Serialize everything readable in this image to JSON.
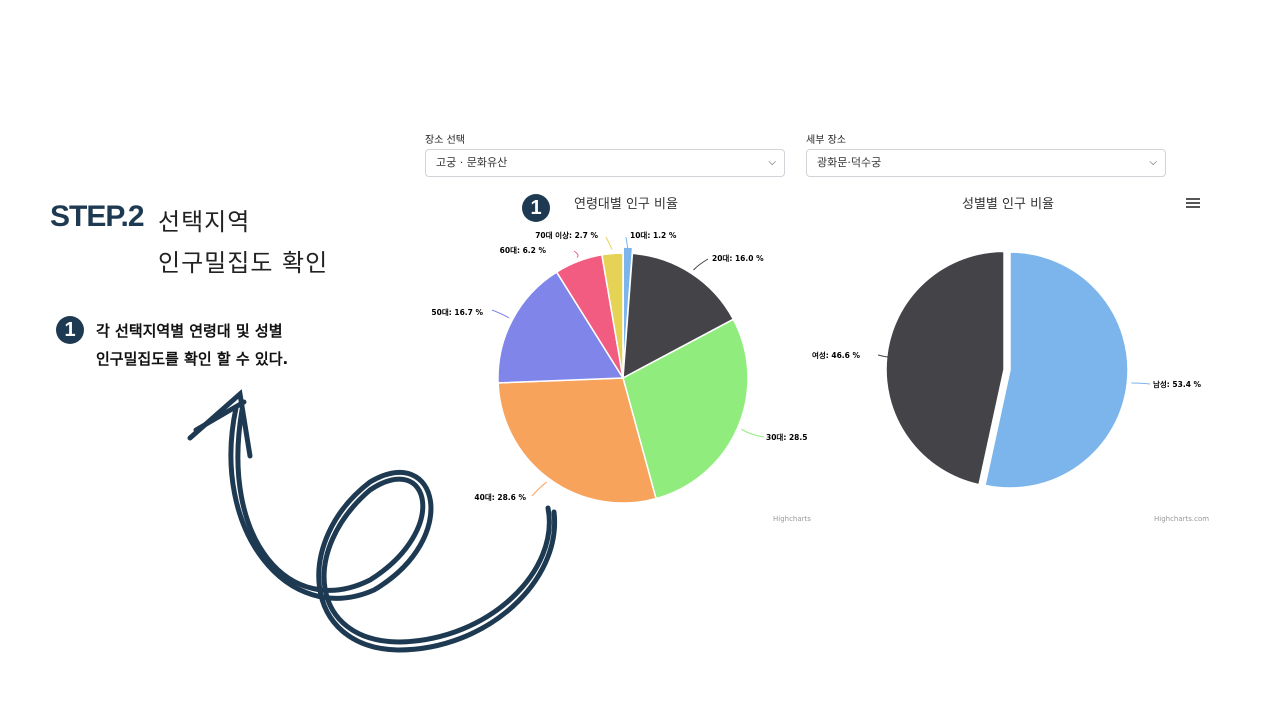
{
  "step": {
    "title": "STEP.2",
    "subtitle_line1": "선택지역",
    "subtitle_line2": "인구밀집도 확인"
  },
  "badge_number": "1",
  "description": {
    "line1": "각 선택지역별 연령대 및 성별",
    "line2": "인구밀집도를 확인 할 수 있다."
  },
  "filters": {
    "place_label": "장소 선택",
    "place_value": "고궁 · 문화유산",
    "detail_label": "세부 장소",
    "detail_value": "광화문·덕수궁"
  },
  "charts": {
    "age_title": "연령대별 인구 비율",
    "gender_title": "성별별 인구 비율",
    "age_credit": "Highcharts",
    "gender_credit": "Highcharts.com"
  },
  "colors": {
    "navy": "#1e3a52",
    "teens": "#7cb5ec",
    "twenties": "#434348",
    "thirties": "#90ed7d",
    "forties": "#f7a35c",
    "fifties": "#8085e9",
    "sixties": "#f15c80",
    "seventies": "#e4d354"
  },
  "icons": [
    "step-badge-icon",
    "hamburger-menu-icon",
    "chevron-down-icon",
    "curved-arrow-icon"
  ],
  "chart_data": [
    {
      "type": "pie",
      "title": "연령대별 인구 비율",
      "slices": [
        {
          "label": "10대: 1.2 %",
          "value": 1.2,
          "color": "#7cb5ec"
        },
        {
          "label": "20대: 16.0 %",
          "value": 16.0,
          "color": "#434348"
        },
        {
          "label": "30대: 28.5",
          "value": 28.5,
          "color": "#90ed7d"
        },
        {
          "label": "40대: 28.6 %",
          "value": 28.6,
          "color": "#f7a35c"
        },
        {
          "label": "50대: 16.7 %",
          "value": 16.7,
          "color": "#8085e9"
        },
        {
          "label": "60대: 6.2 %",
          "value": 6.2,
          "color": "#f15c80"
        },
        {
          "label": "70대 이상: 2.7 %",
          "value": 2.7,
          "color": "#e4d354"
        }
      ]
    },
    {
      "type": "pie",
      "title": "성별별 인구 비율",
      "slices": [
        {
          "label": "남성: 53.4 %",
          "value": 53.4,
          "color": "#7cb5ec"
        },
        {
          "label": "여성: 46.6 %",
          "value": 46.6,
          "color": "#434348"
        }
      ]
    }
  ]
}
